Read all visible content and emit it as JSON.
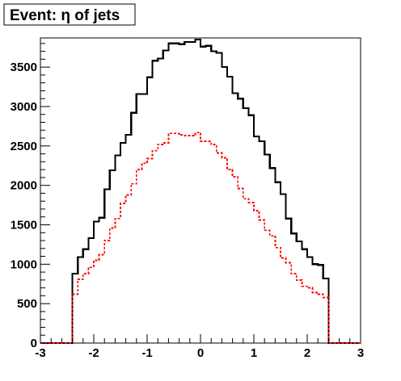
{
  "chart_data": {
    "type": "line",
    "style": "step-histogram",
    "title": "Event: η of jets",
    "xlabel": "",
    "ylabel": "",
    "xlim": [
      -3,
      3
    ],
    "ylim": [
      0,
      3870
    ],
    "x_ticks": [
      -3,
      -2,
      -1,
      0,
      1,
      2,
      3
    ],
    "x_tick_labels": [
      "-3",
      "-2",
      "-1",
      "0",
      "1",
      "2",
      "3"
    ],
    "y_ticks": [
      0,
      500,
      1000,
      1500,
      2000,
      2500,
      3000,
      3500
    ],
    "y_tick_labels": [
      "0",
      "500",
      "1000",
      "1500",
      "2000",
      "2500",
      "3000",
      "3500"
    ],
    "bin_edges": [
      -3.0,
      -2.9,
      -2.8,
      -2.7,
      -2.6,
      -2.5,
      -2.4,
      -2.3,
      -2.2,
      -2.1,
      -2.0,
      -1.9,
      -1.8,
      -1.7,
      -1.6,
      -1.5,
      -1.4,
      -1.3,
      -1.2,
      -1.1,
      -1.0,
      -0.9,
      -0.8,
      -0.7,
      -0.6,
      -0.5,
      -0.4,
      -0.3,
      -0.2,
      -0.1,
      0.0,
      0.1,
      0.2,
      0.3,
      0.4,
      0.5,
      0.6,
      0.7,
      0.8,
      0.9,
      1.0,
      1.1,
      1.2,
      1.3,
      1.4,
      1.5,
      1.6,
      1.7,
      1.8,
      1.9,
      2.0,
      2.1,
      2.2,
      2.3,
      2.4,
      2.5,
      2.6,
      2.7,
      2.8,
      2.9,
      3.0
    ],
    "grid": false,
    "legend": "none",
    "series": [
      {
        "color": "#000000",
        "line_style": "solid",
        "values": [
          0,
          0,
          0,
          0,
          0,
          0,
          880,
          1090,
          1190,
          1330,
          1540,
          1590,
          1950,
          2190,
          2380,
          2540,
          2640,
          2920,
          3160,
          3160,
          3370,
          3580,
          3610,
          3710,
          3800,
          3800,
          3790,
          3820,
          3820,
          3850,
          3760,
          3770,
          3700,
          3680,
          3500,
          3380,
          3170,
          3100,
          2980,
          2890,
          2620,
          2560,
          2390,
          2220,
          2040,
          1890,
          1580,
          1390,
          1290,
          1190,
          1090,
          1000,
          990,
          820,
          0,
          0,
          0,
          0,
          0,
          0
        ]
      },
      {
        "color": "#ff0000",
        "line_style": "dashed",
        "values": [
          0,
          0,
          0,
          0,
          0,
          0,
          620,
          810,
          880,
          960,
          1050,
          1120,
          1300,
          1460,
          1580,
          1770,
          1880,
          2020,
          2200,
          2280,
          2340,
          2440,
          2520,
          2540,
          2660,
          2660,
          2640,
          2630,
          2630,
          2670,
          2560,
          2560,
          2520,
          2410,
          2350,
          2200,
          2110,
          1960,
          1830,
          1780,
          1680,
          1560,
          1430,
          1360,
          1210,
          1080,
          1020,
          880,
          800,
          720,
          700,
          640,
          620,
          580,
          0,
          0,
          0,
          0,
          0,
          0
        ]
      }
    ]
  }
}
